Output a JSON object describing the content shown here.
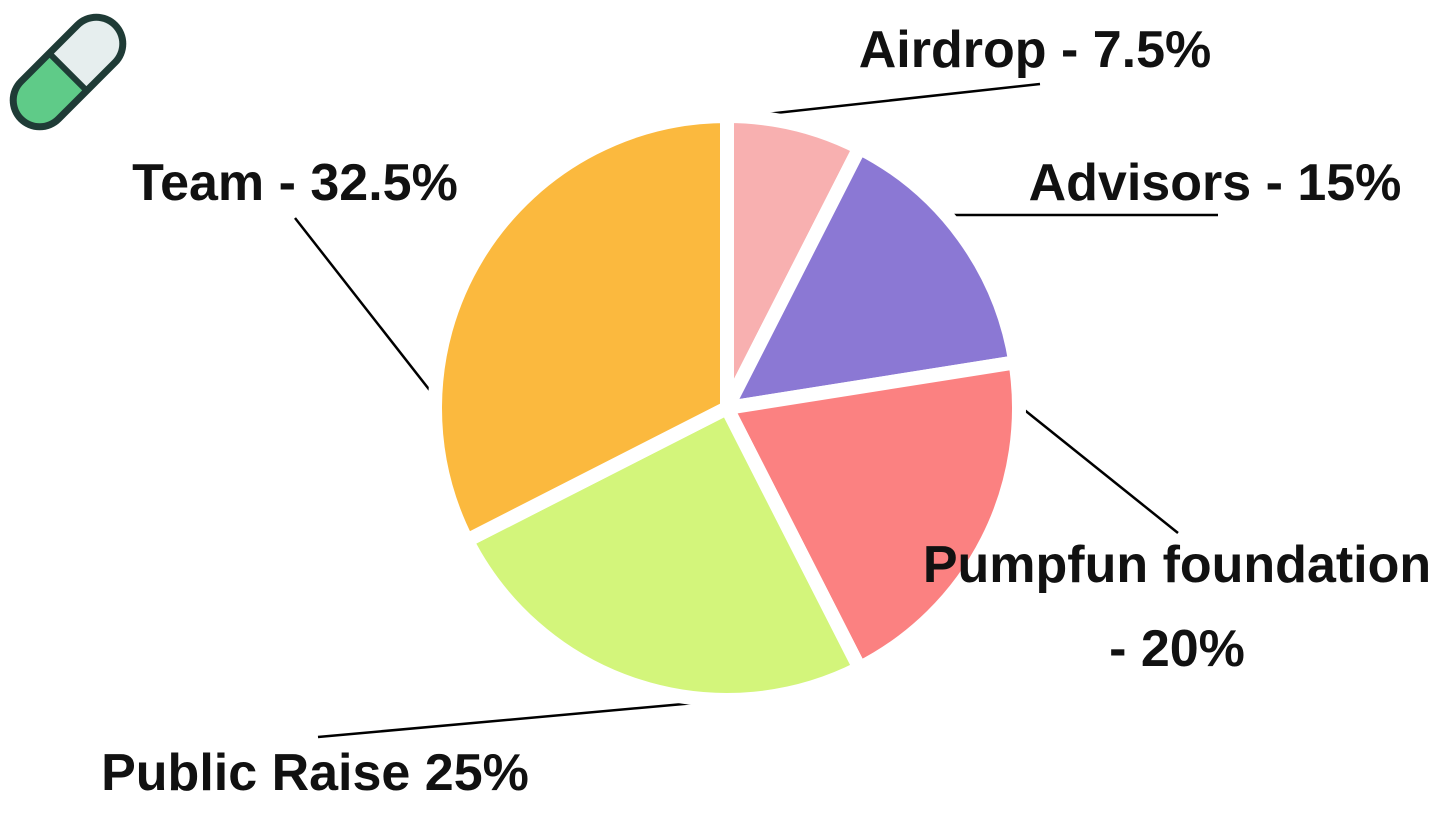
{
  "chart_data": {
    "type": "pie",
    "categories": [
      "Airdrop - 7.5%",
      "Advisors - 15%",
      "Pumpfun foundation - 20%",
      "Public Raise 25%",
      "Team - 32.5%"
    ],
    "values": [
      7.5,
      15,
      20,
      25,
      32.5
    ],
    "colors": [
      "#f8b0b0",
      "#8b78d4",
      "#fb8181",
      "#d3f57b",
      "#fbb93e"
    ]
  }
}
